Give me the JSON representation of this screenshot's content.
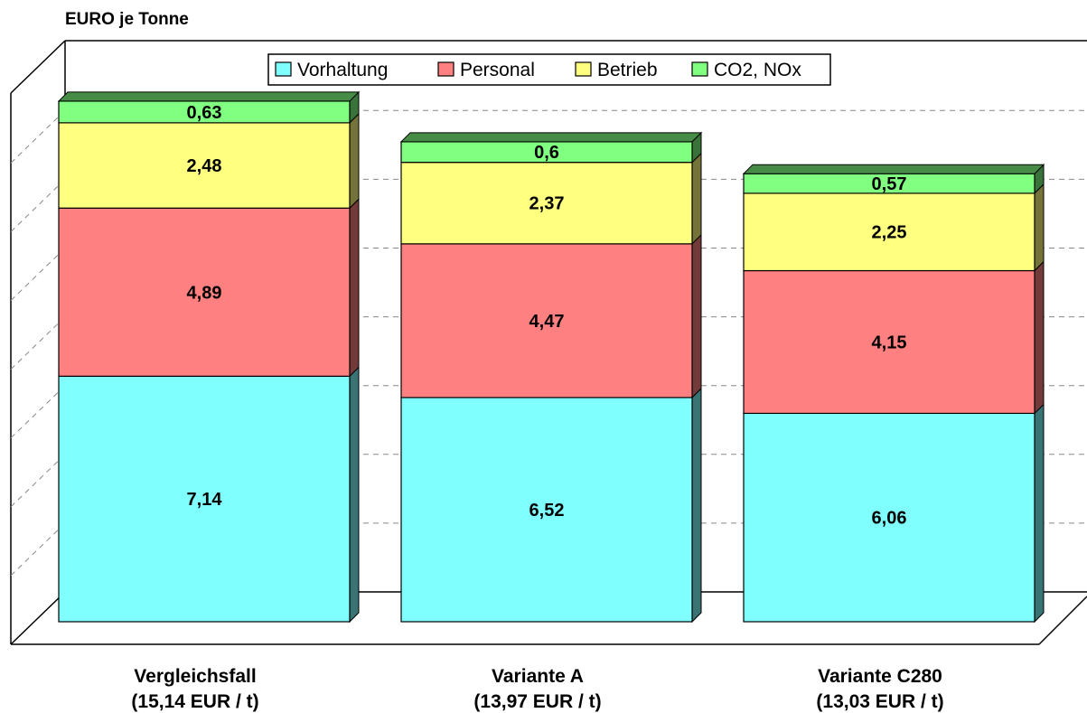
{
  "chart_data": {
    "type": "bar",
    "stacked": true,
    "three_d": true,
    "ylabel": "EURO je Tonne",
    "categories": [
      "Vergleichsfall",
      "Variante A",
      "Variante C280"
    ],
    "category_subtitles": [
      "(15,14 EUR / t)",
      "(13,97 EUR / t)",
      "(13,03 EUR / t)"
    ],
    "series": [
      {
        "name": "Vorhaltung",
        "values": [
          7.14,
          6.52,
          6.06
        ],
        "labels": [
          "7,14",
          "6,52",
          "6,06"
        ],
        "color": "#80FFFF"
      },
      {
        "name": "Personal",
        "values": [
          4.89,
          4.47,
          4.15
        ],
        "labels": [
          "4,89",
          "4,47",
          "4,15"
        ],
        "color": "#FF8080"
      },
      {
        "name": "Betrieb",
        "values": [
          2.48,
          2.37,
          2.25
        ],
        "labels": [
          "2,48",
          "2,37",
          "2,25"
        ],
        "color": "#FFFF80"
      },
      {
        "name": "CO2, NOx",
        "values": [
          0.63,
          0.6,
          0.57
        ],
        "labels": [
          "0,63",
          "0,6",
          "0,57"
        ],
        "color": "#80FF80"
      }
    ],
    "ylim": [
      0,
      16
    ],
    "grid": true,
    "legend_position": "top"
  }
}
